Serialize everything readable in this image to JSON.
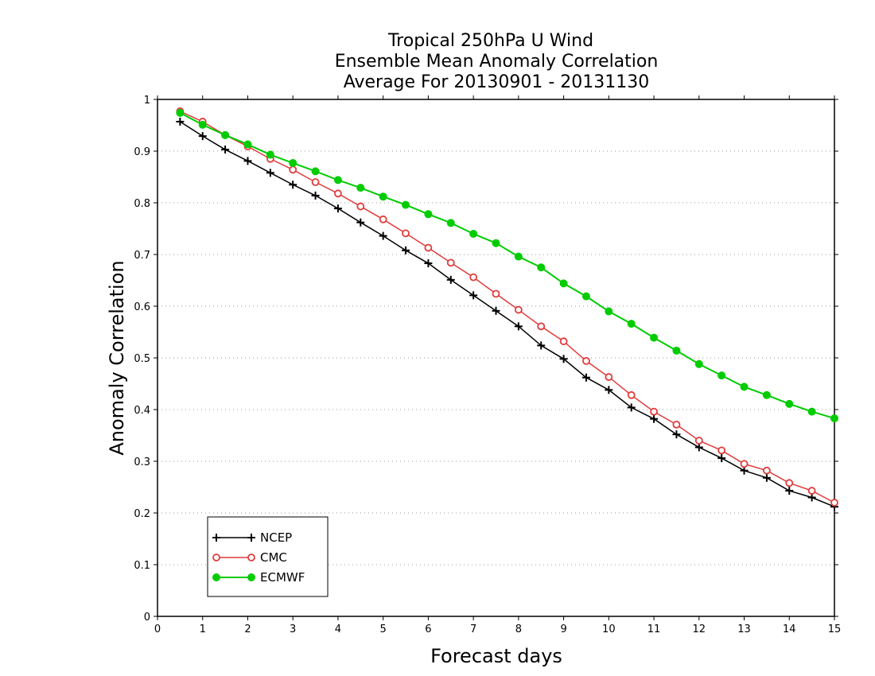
{
  "chart_data": {
    "type": "line",
    "title": [
      "Tropical 250hPa U Wind",
      "Ensemble Mean Anomaly Correlation",
      "Average For 20130901 - 20131130"
    ],
    "xlabel": "Forecast days",
    "ylabel": "Anomaly Correlation",
    "xlim": [
      0,
      15
    ],
    "ylim": [
      0,
      1
    ],
    "xticks": [
      "0",
      "1",
      "2",
      "3",
      "4",
      "5",
      "6",
      "7",
      "8",
      "9",
      "10",
      "11",
      "12",
      "13",
      "14",
      "15"
    ],
    "yticks": [
      "0",
      "0.1",
      "0.2",
      "0.3",
      "0.4",
      "0.5",
      "0.6",
      "0.7",
      "0.8",
      "0.9",
      "1"
    ],
    "grid": "horizontal dotted",
    "legend_position": "bottom-left",
    "x": [
      0.5,
      1,
      1.5,
      2,
      2.5,
      3,
      3.5,
      4,
      4.5,
      5,
      5.5,
      6,
      6.5,
      7,
      7.5,
      8,
      8.5,
      9,
      9.5,
      10,
      10.5,
      11,
      11.5,
      12,
      12.5,
      13,
      13.5,
      14,
      14.5,
      15
    ],
    "series": [
      {
        "name": "NCEP",
        "color": "#000000",
        "marker": "plus",
        "values": [
          0.957,
          0.929,
          0.903,
          0.881,
          0.858,
          0.835,
          0.814,
          0.789,
          0.762,
          0.736,
          0.708,
          0.683,
          0.651,
          0.621,
          0.591,
          0.561,
          0.524,
          0.498,
          0.462,
          0.438,
          0.404,
          0.382,
          0.352,
          0.327,
          0.306,
          0.282,
          0.268,
          0.243,
          0.23,
          0.212
        ]
      },
      {
        "name": "CMC",
        "color": "#e03c3c",
        "marker": "open-circle",
        "values": [
          0.977,
          0.957,
          0.931,
          0.909,
          0.885,
          0.864,
          0.84,
          0.818,
          0.793,
          0.768,
          0.741,
          0.713,
          0.684,
          0.656,
          0.624,
          0.593,
          0.561,
          0.532,
          0.494,
          0.463,
          0.428,
          0.396,
          0.371,
          0.34,
          0.321,
          0.295,
          0.282,
          0.258,
          0.243,
          0.22
        ]
      },
      {
        "name": "ECMWF",
        "color": "#00cc00",
        "marker": "filled-circle",
        "values": [
          0.974,
          0.951,
          0.931,
          0.913,
          0.893,
          0.877,
          0.861,
          0.844,
          0.829,
          0.812,
          0.796,
          0.778,
          0.761,
          0.74,
          0.722,
          0.696,
          0.675,
          0.644,
          0.619,
          0.59,
          0.566,
          0.539,
          0.514,
          0.488,
          0.466,
          0.444,
          0.428,
          0.411,
          0.396,
          0.383
        ]
      }
    ]
  }
}
